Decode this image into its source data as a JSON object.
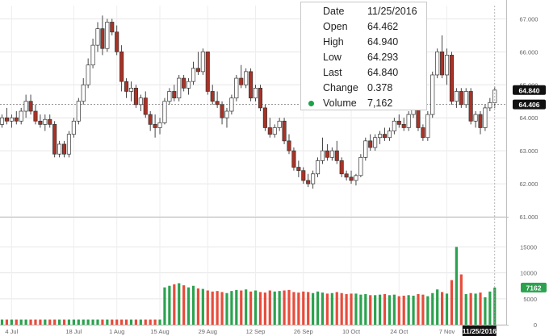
{
  "chart_data": {
    "type": "candlestick",
    "price_axis": {
      "ylim": [
        61.0,
        67.4
      ],
      "ticks": [
        "61.000",
        "62.000",
        "63.000",
        "64.000",
        "65.000",
        "66.000",
        "67.000"
      ]
    },
    "volume_axis": {
      "ylim": [
        0,
        16000
      ],
      "ticks": [
        "0",
        "5000",
        "10000",
        "15000"
      ]
    },
    "x_ticks": [
      "4 Jul",
      "18 Jul",
      "1 Aug",
      "15 Aug",
      "29 Aug",
      "12 Sep",
      "26 Sep",
      "10 Oct",
      "24 Oct",
      "7 Nov"
    ],
    "last_price_label": "64.840",
    "ref_price_label": "64.406",
    "ref_price": 64.406,
    "last_volume_label": "7162",
    "date_label": "11/25/2016",
    "colors": {
      "up": "#ffffff",
      "down": "#a93226",
      "vol_up": "#2ca24f",
      "vol_down": "#e74c3c"
    },
    "candles": [
      [
        63.8,
        64.1,
        63.7,
        64.0
      ],
      [
        64.0,
        64.3,
        63.8,
        63.9
      ],
      [
        63.9,
        64.1,
        63.7,
        64.0
      ],
      [
        64.0,
        64.2,
        63.8,
        63.9
      ],
      [
        63.9,
        64.3,
        63.8,
        64.2
      ],
      [
        64.2,
        64.7,
        64.0,
        64.5
      ],
      [
        64.5,
        64.7,
        64.1,
        64.2
      ],
      [
        64.2,
        64.4,
        63.8,
        63.9
      ],
      [
        63.9,
        64.1,
        63.7,
        63.8
      ],
      [
        63.8,
        64.1,
        63.6,
        63.95
      ],
      [
        63.95,
        64.1,
        63.7,
        63.8
      ],
      [
        63.8,
        63.9,
        62.8,
        62.9
      ],
      [
        62.9,
        63.3,
        62.8,
        63.2
      ],
      [
        63.2,
        63.3,
        62.8,
        62.9
      ],
      [
        62.9,
        63.6,
        62.8,
        63.5
      ],
      [
        63.5,
        64.0,
        63.4,
        63.9
      ],
      [
        63.9,
        64.6,
        63.8,
        64.5
      ],
      [
        64.5,
        65.2,
        64.4,
        65.0
      ],
      [
        65.0,
        65.8,
        64.9,
        65.6
      ],
      [
        65.6,
        66.4,
        65.5,
        66.2
      ],
      [
        66.2,
        66.9,
        66.0,
        66.7
      ],
      [
        66.7,
        67.1,
        65.9,
        66.1
      ],
      [
        66.1,
        67.0,
        66.0,
        66.9
      ],
      [
        66.9,
        67.0,
        66.5,
        66.6
      ],
      [
        66.6,
        66.8,
        65.9,
        66.0
      ],
      [
        66.0,
        66.2,
        64.8,
        65.1
      ],
      [
        65.1,
        65.2,
        64.6,
        64.8
      ],
      [
        64.8,
        65.1,
        64.5,
        64.9
      ],
      [
        64.9,
        65.0,
        64.3,
        64.4
      ],
      [
        64.4,
        64.7,
        64.2,
        64.6
      ],
      [
        64.6,
        64.8,
        64.0,
        64.1
      ],
      [
        64.1,
        64.2,
        63.6,
        63.8
      ],
      [
        63.8,
        64.1,
        63.4,
        63.7
      ],
      [
        63.7,
        64.0,
        63.5,
        63.85
      ],
      [
        63.85,
        64.6,
        63.8,
        64.5
      ],
      [
        64.5,
        64.9,
        64.4,
        64.8
      ],
      [
        64.8,
        65.0,
        64.5,
        64.6
      ],
      [
        64.6,
        65.3,
        64.5,
        65.2
      ],
      [
        65.2,
        65.3,
        64.8,
        64.9
      ],
      [
        64.9,
        65.2,
        64.7,
        65.1
      ],
      [
        65.1,
        65.7,
        65.0,
        65.5
      ],
      [
        65.5,
        66.0,
        65.3,
        65.4
      ],
      [
        65.4,
        66.1,
        65.3,
        66.0
      ],
      [
        66.0,
        66.0,
        64.7,
        64.8
      ],
      [
        64.8,
        65.0,
        64.4,
        64.5
      ],
      [
        64.5,
        64.8,
        64.3,
        64.4
      ],
      [
        64.4,
        64.5,
        63.8,
        64.0
      ],
      [
        64.0,
        64.3,
        63.7,
        64.2
      ],
      [
        64.2,
        64.7,
        64.1,
        64.6
      ],
      [
        64.6,
        65.3,
        64.5,
        65.2
      ],
      [
        65.2,
        65.6,
        64.9,
        65.0
      ],
      [
        65.0,
        65.5,
        64.9,
        65.4
      ],
      [
        65.4,
        65.5,
        64.5,
        64.6
      ],
      [
        64.6,
        65.0,
        64.5,
        64.9
      ],
      [
        64.9,
        65.0,
        64.2,
        64.3
      ],
      [
        64.3,
        64.4,
        63.6,
        63.7
      ],
      [
        63.7,
        64.0,
        63.4,
        63.5
      ],
      [
        63.5,
        63.8,
        63.4,
        63.7
      ],
      [
        63.7,
        64.0,
        63.6,
        63.9
      ],
      [
        63.9,
        64.0,
        63.2,
        63.3
      ],
      [
        63.3,
        63.5,
        62.9,
        63.0
      ],
      [
        63.0,
        63.1,
        62.4,
        62.5
      ],
      [
        62.5,
        62.7,
        62.2,
        62.4
      ],
      [
        62.4,
        62.5,
        62.0,
        62.1
      ],
      [
        62.1,
        62.3,
        61.9,
        62.0
      ],
      [
        62.0,
        62.4,
        61.85,
        62.3
      ],
      [
        62.3,
        62.8,
        62.2,
        62.7
      ],
      [
        62.7,
        63.4,
        62.6,
        63.0
      ],
      [
        63.0,
        63.2,
        62.7,
        62.8
      ],
      [
        62.8,
        63.1,
        62.7,
        63.0
      ],
      [
        63.0,
        63.3,
        62.6,
        62.7
      ],
      [
        62.7,
        62.8,
        62.2,
        62.3
      ],
      [
        62.3,
        62.4,
        62.1,
        62.2
      ],
      [
        62.2,
        62.4,
        62.0,
        62.1
      ],
      [
        62.1,
        62.3,
        61.95,
        62.25
      ],
      [
        62.25,
        62.9,
        62.2,
        62.8
      ],
      [
        62.8,
        63.4,
        62.7,
        63.3
      ],
      [
        63.3,
        63.5,
        63.0,
        63.1
      ],
      [
        63.1,
        63.5,
        63.0,
        63.4
      ],
      [
        63.4,
        63.6,
        63.2,
        63.5
      ],
      [
        63.5,
        63.7,
        63.3,
        63.4
      ],
      [
        63.4,
        63.7,
        63.3,
        63.6
      ],
      [
        63.6,
        64.0,
        63.5,
        63.9
      ],
      [
        63.9,
        64.1,
        63.7,
        63.8
      ],
      [
        63.8,
        64.0,
        63.6,
        63.7
      ],
      [
        63.7,
        64.2,
        63.6,
        64.1
      ],
      [
        64.1,
        64.5,
        64.0,
        64.4
      ],
      [
        64.4,
        64.6,
        63.6,
        63.7
      ],
      [
        63.7,
        63.8,
        63.3,
        63.4
      ],
      [
        63.4,
        64.2,
        63.3,
        64.1
      ],
      [
        64.1,
        65.4,
        64.0,
        65.3
      ],
      [
        65.3,
        66.1,
        65.2,
        66.0
      ],
      [
        66.0,
        66.5,
        65.2,
        65.3
      ],
      [
        65.3,
        66.1,
        65.0,
        65.9
      ],
      [
        65.9,
        66.0,
        64.4,
        64.5
      ],
      [
        64.5,
        64.9,
        64.3,
        64.8
      ],
      [
        64.8,
        64.9,
        64.3,
        64.4
      ],
      [
        64.4,
        64.9,
        64.3,
        64.8
      ],
      [
        64.8,
        64.9,
        63.8,
        63.9
      ],
      [
        63.9,
        64.2,
        63.7,
        64.1
      ],
      [
        64.1,
        64.2,
        63.5,
        63.7
      ],
      [
        63.7,
        64.4,
        63.6,
        64.3
      ],
      [
        64.3,
        64.6,
        64.2,
        64.46
      ],
      [
        64.46,
        64.94,
        64.29,
        64.84
      ]
    ],
    "volumes": [
      1000,
      1000,
      1000,
      1000,
      1000,
      1000,
      1000,
      1000,
      1000,
      1000,
      1000,
      1000,
      1000,
      1000,
      1000,
      1000,
      1000,
      1000,
      1000,
      1000,
      1000,
      1000,
      1000,
      1000,
      1000,
      1000,
      1000,
      1000,
      1000,
      1000,
      1000,
      1000,
      1000,
      1000,
      7200,
      7500,
      7800,
      8000,
      7600,
      7200,
      7500,
      7000,
      6900,
      6600,
      6400,
      6500,
      6300,
      6100,
      6500,
      6700,
      6600,
      6800,
      6400,
      6600,
      6300,
      6200,
      6600,
      6400,
      6500,
      6600,
      6700,
      6300,
      6200,
      6400,
      6300,
      6100,
      6400,
      6200,
      6000,
      6100,
      6300,
      6100,
      5900,
      6000,
      6000,
      5800,
      5900,
      5700,
      5700,
      5800,
      5900,
      5700,
      5800,
      5500,
      5600,
      5700,
      5600,
      5900,
      5800,
      5500,
      6100,
      6800,
      6300,
      6000,
      8600,
      15000,
      9700,
      5900,
      6100,
      6000,
      6200,
      5300,
      6400,
      7162
    ]
  },
  "tooltip": {
    "rows": [
      {
        "label": "Date",
        "value": "11/25/2016"
      },
      {
        "label": "Open",
        "value": "64.462"
      },
      {
        "label": "High",
        "value": "64.940"
      },
      {
        "label": "Low",
        "value": "64.293"
      },
      {
        "label": "Last",
        "value": "64.840"
      },
      {
        "label": "Change",
        "value": "0.378"
      },
      {
        "label": "Volume",
        "value": "7,162"
      }
    ]
  }
}
